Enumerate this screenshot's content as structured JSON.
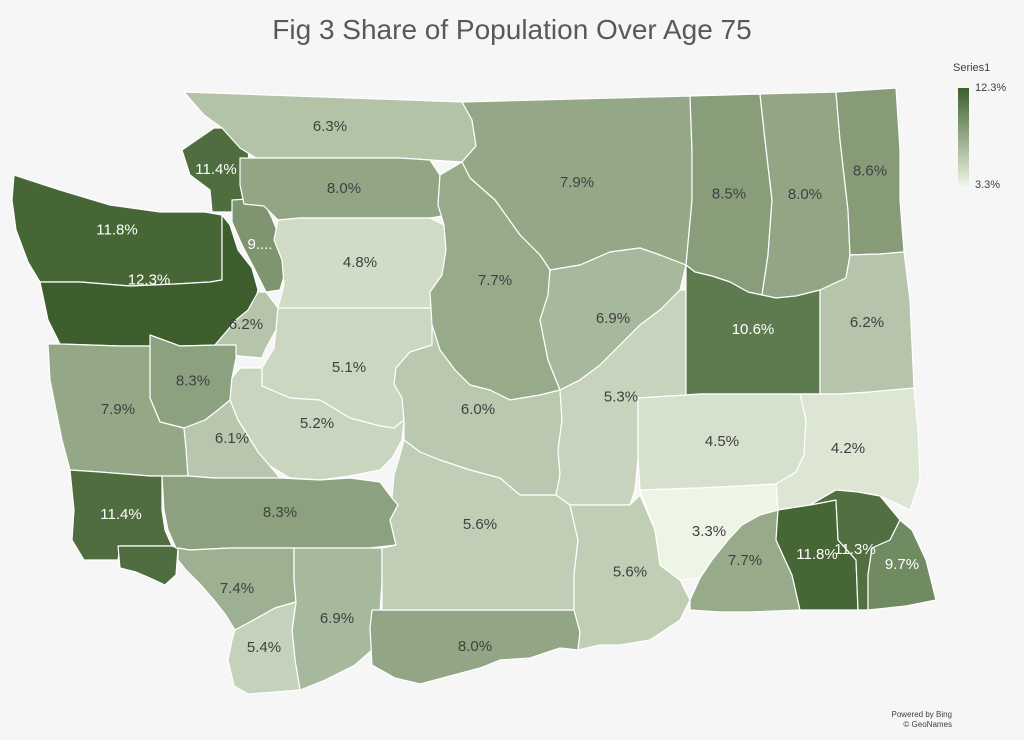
{
  "title": "Fig 3 Share of Population Over Age 75",
  "legend": {
    "series": "Series1",
    "max_label": "12.3%",
    "min_label": "3.3%",
    "max_value": 12.3,
    "min_value": 3.3,
    "color_high": "#3d5e2c",
    "color_low": "#eef5e6"
  },
  "credit": {
    "line1": "Powered by Bing",
    "line2": "© GeoNames"
  },
  "regions": [
    {
      "id": "clallam",
      "value": 11.8,
      "label": "11.8%"
    },
    {
      "id": "jefferson",
      "value": 12.3,
      "label": "12.3%"
    },
    {
      "id": "san-juan",
      "value": 11.4,
      "label": "11.4%"
    },
    {
      "id": "island",
      "value": 9.0,
      "label": "9...."
    },
    {
      "id": "whatcom",
      "value": 6.3,
      "label": "6.3%"
    },
    {
      "id": "skagit",
      "value": 8.0,
      "label": "8.0%"
    },
    {
      "id": "snohomish",
      "value": 4.8,
      "label": "4.8%"
    },
    {
      "id": "kitsap",
      "value": 6.2,
      "label": "6.2%"
    },
    {
      "id": "king",
      "value": 5.1,
      "label": "5.1%"
    },
    {
      "id": "mason",
      "value": 8.3,
      "label": "8.3%"
    },
    {
      "id": "grays-harbor",
      "value": 7.9,
      "label": "7.9%"
    },
    {
      "id": "pierce",
      "value": 5.2,
      "label": "5.2%"
    },
    {
      "id": "thurston",
      "value": 6.1,
      "label": "6.1%"
    },
    {
      "id": "pacific",
      "value": 11.4,
      "label": "11.4%"
    },
    {
      "id": "wahkiakum",
      "value": 11.4,
      "label": ""
    },
    {
      "id": "lewis",
      "value": 8.3,
      "label": "8.3%"
    },
    {
      "id": "cowlitz",
      "value": 7.4,
      "label": "7.4%"
    },
    {
      "id": "skamania",
      "value": 6.9,
      "label": "6.9%"
    },
    {
      "id": "clark",
      "value": 5.4,
      "label": "5.4%"
    },
    {
      "id": "klickitat",
      "value": 8.0,
      "label": "8.0%"
    },
    {
      "id": "okanogan",
      "value": 7.9,
      "label": "7.9%"
    },
    {
      "id": "chelan",
      "value": 7.7,
      "label": "7.7%"
    },
    {
      "id": "kittitas",
      "value": 6.0,
      "label": "6.0%"
    },
    {
      "id": "yakima",
      "value": 5.6,
      "label": "5.6%"
    },
    {
      "id": "douglas",
      "value": 6.9,
      "label": "6.9%"
    },
    {
      "id": "grant",
      "value": 5.3,
      "label": "5.3%"
    },
    {
      "id": "benton",
      "value": 5.6,
      "label": "5.6%"
    },
    {
      "id": "ferry",
      "value": 8.5,
      "label": "8.5%"
    },
    {
      "id": "stevens",
      "value": 8.0,
      "label": "8.0%"
    },
    {
      "id": "pend-oreille",
      "value": 8.6,
      "label": "8.6%"
    },
    {
      "id": "lincoln",
      "value": 10.6,
      "label": "10.6%"
    },
    {
      "id": "spokane",
      "value": 6.2,
      "label": "6.2%"
    },
    {
      "id": "adams",
      "value": 4.5,
      "label": "4.5%"
    },
    {
      "id": "whitman",
      "value": 4.2,
      "label": "4.2%"
    },
    {
      "id": "franklin",
      "value": 3.3,
      "label": "3.3%"
    },
    {
      "id": "walla-walla",
      "value": 7.7,
      "label": "7.7%"
    },
    {
      "id": "columbia",
      "value": 11.8,
      "label": "11.8%"
    },
    {
      "id": "garfield",
      "value": 11.3,
      "label": "11.3%"
    },
    {
      "id": "asotin",
      "value": 9.7,
      "label": "9.7%"
    }
  ]
}
